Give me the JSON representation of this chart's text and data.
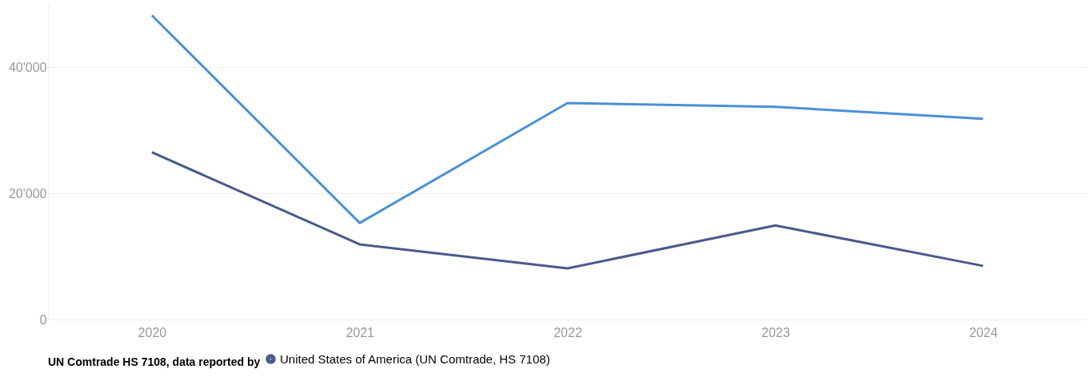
{
  "chart_data": {
    "type": "line",
    "legend_title": "UN Comtrade HS 7108, data reported by",
    "categories": [
      "2020",
      "2021",
      "2022",
      "2023",
      "2024"
    ],
    "series": [
      {
        "color": "#4a90d9",
        "values": [
          48200,
          15300,
          34300,
          33700,
          31800
        ]
      },
      {
        "name": "United States of America (UN Comtrade, HS 7108)",
        "color": "#4a5a8a",
        "values": [
          26500,
          11900,
          8100,
          14900,
          8500
        ]
      }
    ],
    "ylim": [
      0,
      50000
    ],
    "yticks": [
      {
        "value": 0,
        "label": "0"
      },
      {
        "value": 20000,
        "label": "20'000"
      },
      {
        "value": 40000,
        "label": "40'000"
      }
    ],
    "grid": "y",
    "legend": "bottom",
    "marker": "none",
    "line_style": "solid"
  }
}
